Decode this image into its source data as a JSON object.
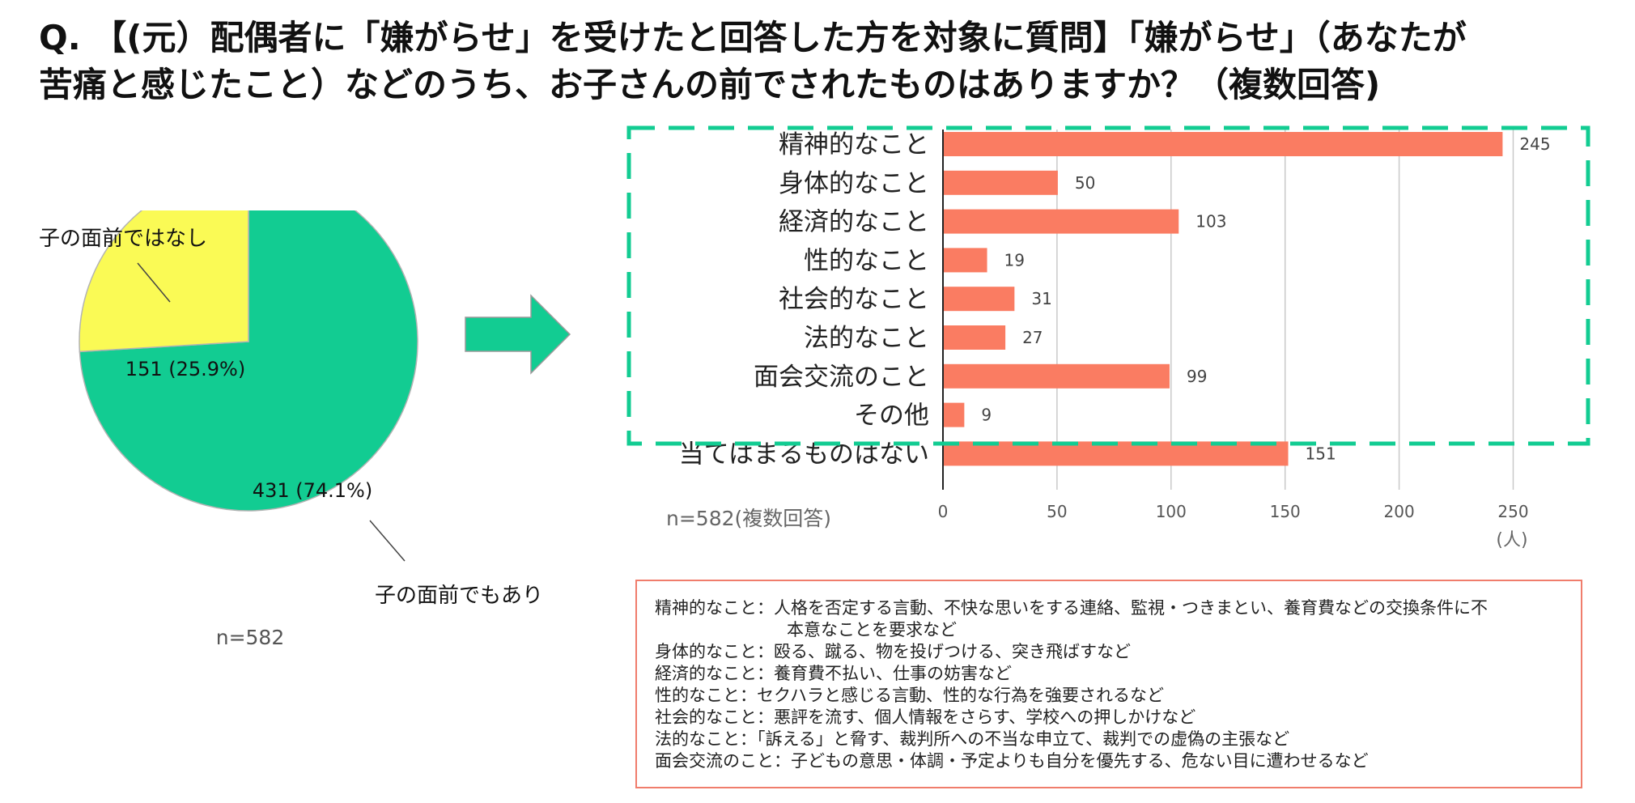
{
  "title": {
    "line1": "Q. 【(元）配偶者に「嫌がらせ」を受けたと回答した方を対象に質問】「嫌がらせ」（あなたが",
    "line2": "苦痛と感じたこと）などのうち、お子さんの前でされたものはありますか？（複数回答)"
  },
  "chart_data": [
    {
      "type": "pie",
      "slices": [
        {
          "name": "子の面前でもあり",
          "value": 431,
          "percent": 74.1,
          "label": "431 (74.1%)",
          "color": "#12cc92"
        },
        {
          "name": "子の面前ではなし",
          "value": 151,
          "percent": 25.9,
          "label": "151 (25.9%)",
          "color": "#fafa55"
        }
      ],
      "note": "n=582"
    },
    {
      "type": "bar",
      "orientation": "horizontal",
      "categories": [
        "精神的なこと",
        "身体的なこと",
        "経済的なこと",
        "性的なこと",
        "社会的なこと",
        "法的なこと",
        "面会交流のこと",
        "その他",
        "当てはまるものはない"
      ],
      "values": [
        245,
        50,
        103,
        19,
        31,
        27,
        99,
        9,
        151
      ],
      "xlim": [
        0,
        275
      ],
      "xticks": [
        "0",
        "50",
        "100",
        "150",
        "200",
        "250"
      ],
      "xunit": "(人)",
      "note": "n=582(複数回答)",
      "bar_color": "#fa7c62",
      "highlight_color": "#12cc92",
      "grid": true
    }
  ],
  "definitions": [
    {
      "text": "精神的なこと：人格を否定する言動、不快な思いをする連絡、監視・つきまとい、養育費などの交換条件に不",
      "indent": false
    },
    {
      "text": "本意なことを要求など",
      "indent": true
    },
    {
      "text": "身体的なこと：殴る、蹴る、物を投げつける、突き飛ばすなど",
      "indent": false
    },
    {
      "text": "経済的なこと：養育費不払い、仕事の妨害など",
      "indent": false
    },
    {
      "text": "性的なこと：セクハラと感じる言動、性的な行為を強要されるなど",
      "indent": false
    },
    {
      "text": "社会的なこと：悪評を流す、個人情報をさらす、学校への押しかけなど",
      "indent": false
    },
    {
      "text": "法的なこと：「訴える」と脅す、裁判所への不当な申立て、裁判での虚偽の主張など",
      "indent": false
    },
    {
      "text": "面会交流のこと：子どもの意思・体調・予定よりも自分を優先する、危ない目に遭わせるなど",
      "indent": false
    }
  ]
}
